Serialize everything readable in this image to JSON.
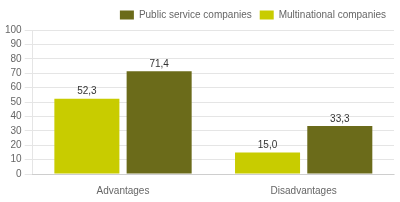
{
  "chart_data": {
    "type": "bar",
    "categories": [
      "Advantages",
      "Disadvantages"
    ],
    "series": [
      {
        "name": "Multinational companies",
        "color": "#c8cc00",
        "values": [
          52.3,
          15.0
        ],
        "value_labels": [
          "52,3",
          "15,0"
        ]
      },
      {
        "name": "Public service companies",
        "color": "#6b6b1a",
        "values": [
          71.4,
          33.3
        ],
        "value_labels": [
          "71,4",
          "33,3"
        ]
      }
    ],
    "ylim": [
      0,
      100
    ],
    "yticks": [
      0,
      10,
      20,
      30,
      40,
      50,
      60,
      70,
      80,
      90,
      100
    ],
    "grid": true,
    "legend": "upper right",
    "data_labels": true
  }
}
